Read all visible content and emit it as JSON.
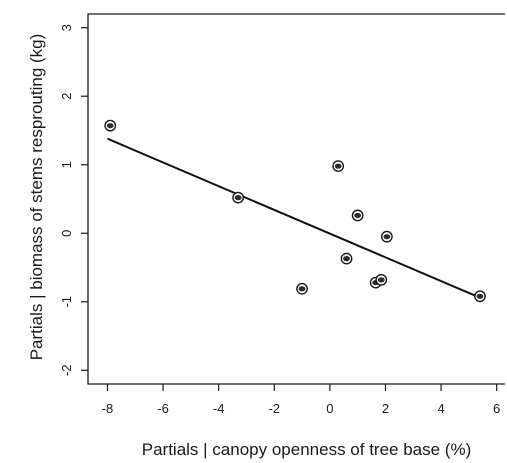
{
  "chart_data": {
    "type": "scatter",
    "title": "",
    "xlabel": "Partials | canopy openness of tree base (%)",
    "ylabel": "Partials | biomass of stems resprouting (kg)",
    "xlim": [
      -8.7,
      6.3
    ],
    "ylim": [
      -2.2,
      3.2
    ],
    "x_ticks": [
      -8,
      -6,
      -4,
      -2,
      0,
      2,
      4,
      6
    ],
    "y_ticks": [
      -2,
      -1,
      0,
      1,
      2,
      3
    ],
    "x_tick_labels": [
      "-8",
      "-6",
      "-4",
      "-2",
      "0",
      "2",
      "4",
      "6"
    ],
    "y_tick_labels": [
      "-2",
      "-1",
      "0",
      "1",
      "2",
      "3"
    ],
    "grid": false,
    "series": [
      {
        "points": [
          {
            "x": -7.9,
            "y": 1.57
          },
          {
            "x": -3.3,
            "y": 0.52
          },
          {
            "x": -1.0,
            "y": -0.81
          },
          {
            "x": 0.3,
            "y": 0.98
          },
          {
            "x": 0.6,
            "y": -0.37
          },
          {
            "x": 1.0,
            "y": 0.26
          },
          {
            "x": 1.65,
            "y": -0.72
          },
          {
            "x": 1.85,
            "y": -0.68
          },
          {
            "x": 2.05,
            "y": -0.05
          },
          {
            "x": 5.4,
            "y": -0.92
          }
        ]
      }
    ],
    "fit_line": {
      "x": [
        -8.0,
        5.4
      ],
      "y": [
        1.38,
        -0.94
      ]
    }
  }
}
